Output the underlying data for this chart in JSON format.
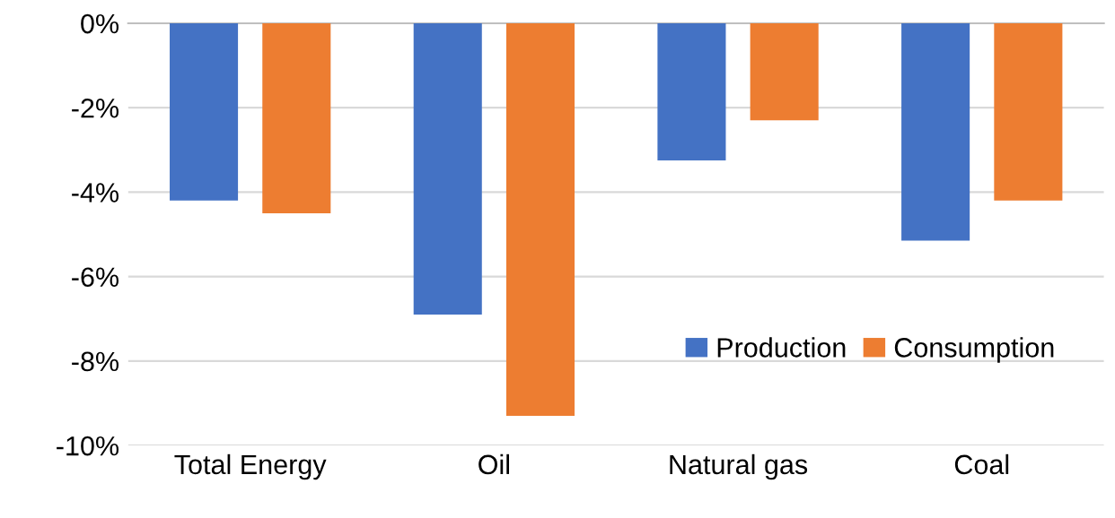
{
  "chart_data": {
    "type": "bar",
    "categories": [
      "Total Energy",
      "Oil",
      "Natural gas",
      "Coal"
    ],
    "series": [
      {
        "name": "Production",
        "color": "#4472c4",
        "values": [
          -4.2,
          -6.9,
          -3.25,
          -5.15
        ]
      },
      {
        "name": "Consumption",
        "color": "#ed7d31",
        "values": [
          -4.5,
          -9.3,
          -2.3,
          -4.2
        ]
      }
    ],
    "ylim": [
      -10,
      0
    ],
    "yticks": [
      {
        "value": -10,
        "label": "-10%"
      },
      {
        "value": -8,
        "label": "-8%"
      },
      {
        "value": -6,
        "label": "-6%"
      },
      {
        "value": -4,
        "label": "-4%"
      },
      {
        "value": -2,
        "label": "-2%"
      },
      {
        "value": 0,
        "label": "0%"
      }
    ],
    "grid": "y",
    "legend": "bottom right"
  }
}
